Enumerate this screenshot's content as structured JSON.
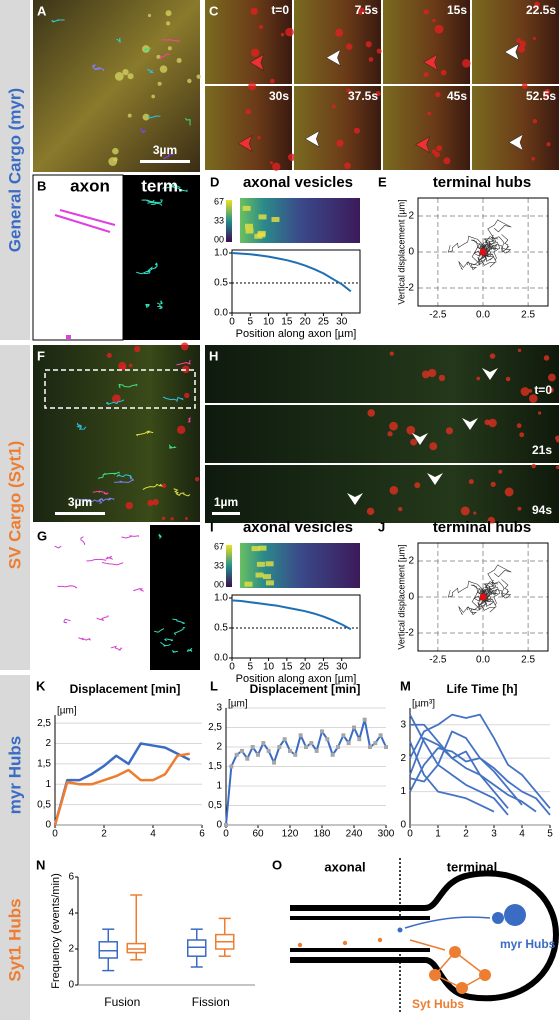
{
  "side_labels": [
    "General Cargo (myr)",
    "SV Cargo (Syt1)",
    "myr Hubs",
    "Syt1 Hubs"
  ],
  "panels": {
    "A": {
      "letter": "A",
      "scale_bar": "3µm"
    },
    "C": {
      "letter": "C",
      "times": [
        "t=0",
        "7.5s",
        "15s",
        "22.5s",
        "30s",
        "37.5s",
        "45s",
        "52.5s"
      ]
    },
    "B": {
      "letter": "B",
      "left": "axon",
      "right": "term."
    },
    "D": {
      "letter": "D",
      "title": "axonal vesicles",
      "colorbar_ticks": [
        "67",
        "33",
        "00"
      ],
      "chart": {
        "type": "line",
        "x": [
          0,
          2.5,
          5,
          7.5,
          10,
          12.5,
          15,
          17.5,
          20,
          22.5,
          25,
          27.5,
          30,
          32.5
        ],
        "values": [
          1.0,
          0.99,
          0.98,
          0.96,
          0.94,
          0.91,
          0.88,
          0.84,
          0.79,
          0.73,
          0.66,
          0.57,
          0.48,
          0.36
        ],
        "color": "#1f6fb4",
        "reference": 0.5,
        "xlim": [
          0,
          35
        ],
        "xticks": [
          0,
          5,
          10,
          15,
          20,
          25,
          30
        ],
        "ylim": [
          0,
          1.05
        ],
        "yticks": [
          {
            "value": 0,
            "label": "0.0"
          },
          {
            "value": 0.5,
            "label": "0.5"
          },
          {
            "value": 1,
            "label": "1.0"
          }
        ],
        "x_label": "Position along axon [µm]"
      }
    },
    "E": {
      "letter": "E",
      "title": "terminal hubs",
      "chart": {
        "type": "scatter",
        "x": [
          0.0
        ],
        "values": [
          0.0
        ],
        "color": "#e01010",
        "grid": true,
        "xlim": [
          -3.6,
          3.6
        ],
        "xticks": [
          -2.5,
          {
            "value": 0,
            "label": "0.0"
          },
          2.5
        ],
        "ylim": [
          -3,
          3
        ],
        "yticks": [
          -2,
          0,
          2
        ],
        "y_label": "Vertical displacement [µm]"
      }
    },
    "F": {
      "letter": "F",
      "scale_bar": "3µm"
    },
    "H": {
      "letter": "H",
      "times": [
        "t=0",
        "21s",
        "94s"
      ],
      "scale_bar": "1µm"
    },
    "G": {
      "letter": "G"
    },
    "I": {
      "letter": "I",
      "title": "axonal vesicles",
      "colorbar_ticks": [
        "67",
        "33",
        "00"
      ],
      "chart": {
        "type": "line",
        "x": [
          0,
          2.5,
          5,
          7.5,
          10,
          12.5,
          15,
          17.5,
          20,
          22.5,
          25,
          27.5,
          30,
          32.5
        ],
        "values": [
          0.96,
          0.95,
          0.93,
          0.91,
          0.89,
          0.87,
          0.84,
          0.81,
          0.78,
          0.74,
          0.69,
          0.63,
          0.56,
          0.48
        ],
        "color": "#1f6fb4",
        "reference": 0.5,
        "xlim": [
          0,
          35
        ],
        "xticks": [
          0,
          5,
          10,
          15,
          20,
          25,
          30
        ],
        "ylim": [
          0,
          1.05
        ],
        "yticks": [
          {
            "value": 0,
            "label": "0.0"
          },
          {
            "value": 0.5,
            "label": "0.5"
          },
          {
            "value": 1,
            "label": "1.0"
          }
        ],
        "x_label": "Position along axon [µm]"
      }
    },
    "J": {
      "letter": "J",
      "title": "terminal hubs",
      "chart": {
        "type": "scatter",
        "x": [
          0.0
        ],
        "values": [
          0.0
        ],
        "color": "#e01010",
        "grid": true,
        "xlim": [
          -3.6,
          3.6
        ],
        "xticks": [
          -2.5,
          {
            "value": 0,
            "label": "0.0"
          },
          2.5
        ],
        "ylim": [
          -3,
          3
        ],
        "yticks": [
          -2,
          0,
          2
        ],
        "y_label": "Vertical displacement [µm]"
      }
    },
    "K": {
      "letter": "K",
      "title": "Displacement [min]",
      "chart": {
        "type": "line",
        "unit": "[µm]",
        "grid": true,
        "x": [
          0,
          0.5,
          1,
          1.5,
          2,
          2.5,
          3,
          3.5,
          4,
          4.5,
          5,
          5.5
        ],
        "series": [
          {
            "color": "#3b6cc4",
            "values": [
              0,
              1.1,
              1.1,
              1.25,
              1.45,
              1.7,
              1.5,
              2.0,
              1.95,
              1.9,
              1.75,
              1.6
            ]
          },
          {
            "color": "#ed7d31",
            "values": [
              0,
              1.05,
              1.0,
              1.0,
              1.1,
              1.2,
              1.35,
              1.1,
              1.1,
              1.25,
              1.7,
              1.75
            ]
          }
        ],
        "xlim": [
          0,
          6
        ],
        "xticks": [
          0,
          2,
          4,
          6
        ],
        "ylim": [
          0,
          2.7
        ],
        "yticks": [
          0,
          {
            "value": 0.5,
            "label": "0,5"
          },
          1,
          {
            "value": 1.5,
            "label": "1,5"
          },
          2,
          {
            "value": 2.5,
            "label": "2,5"
          }
        ]
      }
    },
    "L": {
      "letter": "L",
      "title": "Displacement [min]",
      "chart": {
        "type": "line",
        "unit": "[µm]",
        "grid": true,
        "markers": "#a6a6a6",
        "x": [
          0,
          10,
          20,
          30,
          40,
          50,
          60,
          70,
          80,
          90,
          100,
          110,
          120,
          130,
          140,
          150,
          160,
          170,
          180,
          190,
          200,
          210,
          220,
          230,
          240,
          250,
          260,
          270,
          280,
          290,
          300
        ],
        "series": [
          {
            "color": "#3b6cc4",
            "values": [
              0,
              1.5,
              1.8,
              1.9,
              1.7,
              2.0,
              1.8,
              2.1,
              1.9,
              1.6,
              2.0,
              2.2,
              1.9,
              1.8,
              2.3,
              2.0,
              2.1,
              1.9,
              2.4,
              2.2,
              1.8,
              2.0,
              2.3,
              2.1,
              2.5,
              2.2,
              2.7,
              2.0,
              2.1,
              2.3,
              2.0
            ]
          }
        ],
        "xlim": [
          0,
          300
        ],
        "xticks": [
          0,
          60,
          120,
          180,
          240,
          300
        ],
        "ylim": [
          0,
          3
        ],
        "yticks": [
          0,
          {
            "value": 0.5,
            "label": "0,5"
          },
          1,
          {
            "value": 1.5,
            "label": "1,5"
          },
          2,
          {
            "value": 2.5,
            "label": "2,5"
          },
          3
        ]
      }
    },
    "M": {
      "letter": "M",
      "title": "Life Time [h]",
      "chart": {
        "type": "line",
        "unit": "[µm³]",
        "grid": true,
        "x": [
          0,
          0.5,
          1,
          1.5,
          2,
          2.5,
          3,
          3.5,
          4,
          4.5,
          5
        ],
        "series": [
          {
            "color": "#4472c4",
            "values": [
              2.0,
              2.8,
              3.0,
              3.3,
              3.2,
              3.3,
              2.6,
              1.8,
              1.5,
              1.0,
              0.5
            ]
          },
          {
            "color": "#4472c4",
            "values": [
              1.5,
              2.6,
              2.4,
              2.0,
              1.7,
              1.5,
              1.2,
              0.9,
              0.7,
              0.4,
              null
            ]
          },
          {
            "color": "#4472c4",
            "values": [
              3.0,
              3.0,
              2.5,
              2.0,
              2.2,
              1.5,
              1.0,
              0.5,
              null,
              null,
              null
            ]
          },
          {
            "color": "#4472c4",
            "values": [
              1.4,
              1.3,
              1.8,
              2.8,
              2.6,
              2.0,
              1.6,
              1.1,
              0.6,
              null,
              null
            ]
          },
          {
            "color": "#4472c4",
            "values": [
              2.5,
              1.5,
              1.0,
              0.9,
              0.8,
              0.6,
              0.4,
              null,
              null,
              null,
              null
            ]
          },
          {
            "color": "#4472c4",
            "values": [
              1.0,
              1.8,
              2.3,
              2.2,
              1.9,
              2.0,
              1.7,
              1.3,
              1.0,
              0.8,
              0.3
            ]
          },
          {
            "color": "#4472c4",
            "values": [
              3.3,
              2.5,
              1.8,
              1.5,
              1.2,
              1.0,
              0.8,
              0.3,
              null,
              null,
              null
            ]
          }
        ],
        "xlim": [
          0,
          5
        ],
        "xticks": [
          0,
          1,
          2,
          3,
          4,
          5
        ],
        "ylim": [
          0,
          3.5
        ],
        "yticks": [
          0,
          1,
          2,
          3
        ]
      }
    },
    "N": {
      "letter": "N",
      "chart": {
        "type": "box",
        "categories": [
          "Fusion",
          "Fission"
        ],
        "y_label": "Frequency (events/min)",
        "series": [
          {
            "color": "#3b6cc4",
            "boxes": [
              {
                "min": 0.8,
                "q1": 1.5,
                "median": 1.9,
                "q3": 2.4,
                "max": 3.1
              },
              {
                "min": 1.0,
                "q1": 1.6,
                "median": 2.1,
                "q3": 2.5,
                "max": 3.1
              }
            ]
          },
          {
            "color": "#ed7d31",
            "boxes": [
              {
                "min": 1.4,
                "q1": 1.8,
                "median": 2.0,
                "q3": 2.3,
                "max": 5.0
              },
              {
                "min": 1.6,
                "q1": 2.0,
                "median": 2.4,
                "q3": 2.8,
                "max": 3.7
              }
            ]
          }
        ],
        "ylim": [
          0,
          6
        ],
        "yticks": [
          0,
          2,
          4,
          6
        ]
      }
    },
    "O": {
      "letter": "O",
      "left": "axonal",
      "right": "terminal",
      "myr": "myr Hubs",
      "syt": "Syt Hubs"
    }
  }
}
